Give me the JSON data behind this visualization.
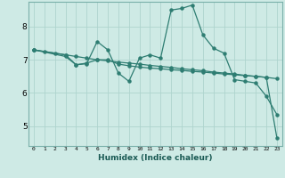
{
  "xlabel": "Humidex (Indice chaleur)",
  "background_color": "#ceeae5",
  "grid_color": "#aed4ce",
  "line_color": "#2e7d72",
  "x_ticks": [
    0,
    1,
    2,
    3,
    4,
    5,
    6,
    7,
    8,
    9,
    10,
    11,
    12,
    13,
    14,
    15,
    16,
    17,
    18,
    19,
    20,
    21,
    22,
    23
  ],
  "y_ticks": [
    5,
    6,
    7,
    8
  ],
  "xlim": [
    -0.5,
    23.5
  ],
  "ylim": [
    4.4,
    8.75
  ],
  "line1_x": [
    0,
    1,
    2,
    3,
    4,
    5,
    6,
    7,
    8,
    9,
    10,
    11,
    12,
    13,
    14,
    15,
    16,
    17,
    18,
    19,
    20,
    21,
    22,
    23
  ],
  "line1_y": [
    7.3,
    7.25,
    7.2,
    7.15,
    7.1,
    7.05,
    7.0,
    6.97,
    6.93,
    6.9,
    6.87,
    6.83,
    6.8,
    6.77,
    6.73,
    6.7,
    6.67,
    6.63,
    6.6,
    6.57,
    6.53,
    6.5,
    6.47,
    6.43
  ],
  "line2_x": [
    0,
    3,
    4,
    5,
    6,
    7,
    8,
    9,
    10,
    11,
    12,
    13,
    14,
    15,
    16,
    17,
    18,
    19,
    20,
    21,
    22,
    23
  ],
  "line2_y": [
    7.3,
    7.15,
    6.85,
    6.88,
    7.55,
    7.3,
    6.6,
    6.35,
    7.05,
    7.15,
    7.05,
    8.5,
    8.55,
    8.65,
    7.75,
    7.35,
    7.2,
    6.4,
    6.35,
    6.3,
    5.9,
    5.35
  ],
  "line3_x": [
    0,
    3,
    4,
    5,
    6,
    7,
    8,
    9,
    10,
    11,
    12,
    13,
    14,
    15,
    16,
    17,
    18,
    19,
    20,
    21,
    22,
    23
  ],
  "line3_y": [
    7.3,
    7.1,
    6.85,
    6.9,
    7.0,
    7.0,
    6.87,
    6.82,
    6.78,
    6.75,
    6.73,
    6.7,
    6.68,
    6.65,
    6.63,
    6.6,
    6.57,
    6.55,
    6.52,
    6.5,
    6.47,
    4.65
  ]
}
